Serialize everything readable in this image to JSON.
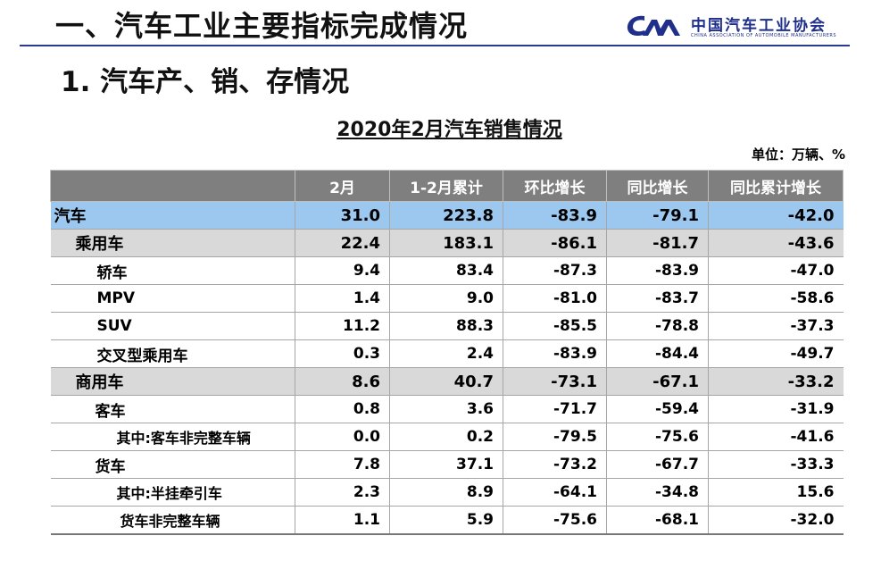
{
  "header": {
    "title": "一、汽车工业主要指标完成情况",
    "logo_cn": "中国汽车工业协会",
    "logo_en": "CHINA ASSOCIATION OF AUTOMOBILE MANUFACTURERS"
  },
  "section_heading": "1. 汽车产、销、存情况",
  "table": {
    "title": "2020年2月汽车销售情况",
    "unit": "单位：万辆、%",
    "columns": [
      "",
      "2月",
      "1-2月累计",
      "环比增长",
      "同比增长",
      "同比累计增长"
    ],
    "rows": [
      {
        "label": "汽车",
        "level": 0,
        "values": [
          "31.0",
          "223.8",
          "-83.9",
          "-79.1",
          "-42.0"
        ]
      },
      {
        "label": "乘用车",
        "level": 1,
        "values": [
          "22.4",
          "183.1",
          "-86.1",
          "-81.7",
          "-43.6"
        ]
      },
      {
        "label": "轿车",
        "level": 2,
        "values": [
          "9.4",
          "83.4",
          "-87.3",
          "-83.9",
          "-47.0"
        ]
      },
      {
        "label": "MPV",
        "level": 2,
        "values": [
          "1.4",
          "9.0",
          "-81.0",
          "-83.7",
          "-58.6"
        ]
      },
      {
        "label": "SUV",
        "level": 2,
        "values": [
          "11.2",
          "88.3",
          "-85.5",
          "-78.8",
          "-37.3"
        ]
      },
      {
        "label": "交叉型乘用车",
        "level": 2,
        "values": [
          "0.3",
          "2.4",
          "-83.9",
          "-84.4",
          "-49.7"
        ]
      },
      {
        "label": "商用车",
        "level": 1,
        "values": [
          "8.6",
          "40.7",
          "-73.1",
          "-67.1",
          "-33.2"
        ]
      },
      {
        "label": "客车",
        "level": "2b",
        "values": [
          "0.8",
          "3.6",
          "-71.7",
          "-59.4",
          "-31.9"
        ]
      },
      {
        "label": "其中:客车非完整车辆",
        "level": "3b",
        "values": [
          "0.0",
          "0.2",
          "-79.5",
          "-75.6",
          "-41.6"
        ]
      },
      {
        "label": "货车",
        "level": "2b",
        "values": [
          "7.8",
          "37.1",
          "-73.2",
          "-67.7",
          "-33.3"
        ]
      },
      {
        "label": "其中:半挂牵引车",
        "level": "3b",
        "values": [
          "2.3",
          "8.9",
          "-64.1",
          "-34.8",
          "15.6"
        ]
      },
      {
        "label": "货车非完整车辆",
        "level": 3,
        "values": [
          "1.1",
          "5.9",
          "-75.6",
          "-68.1",
          "-32.0"
        ]
      }
    ]
  }
}
